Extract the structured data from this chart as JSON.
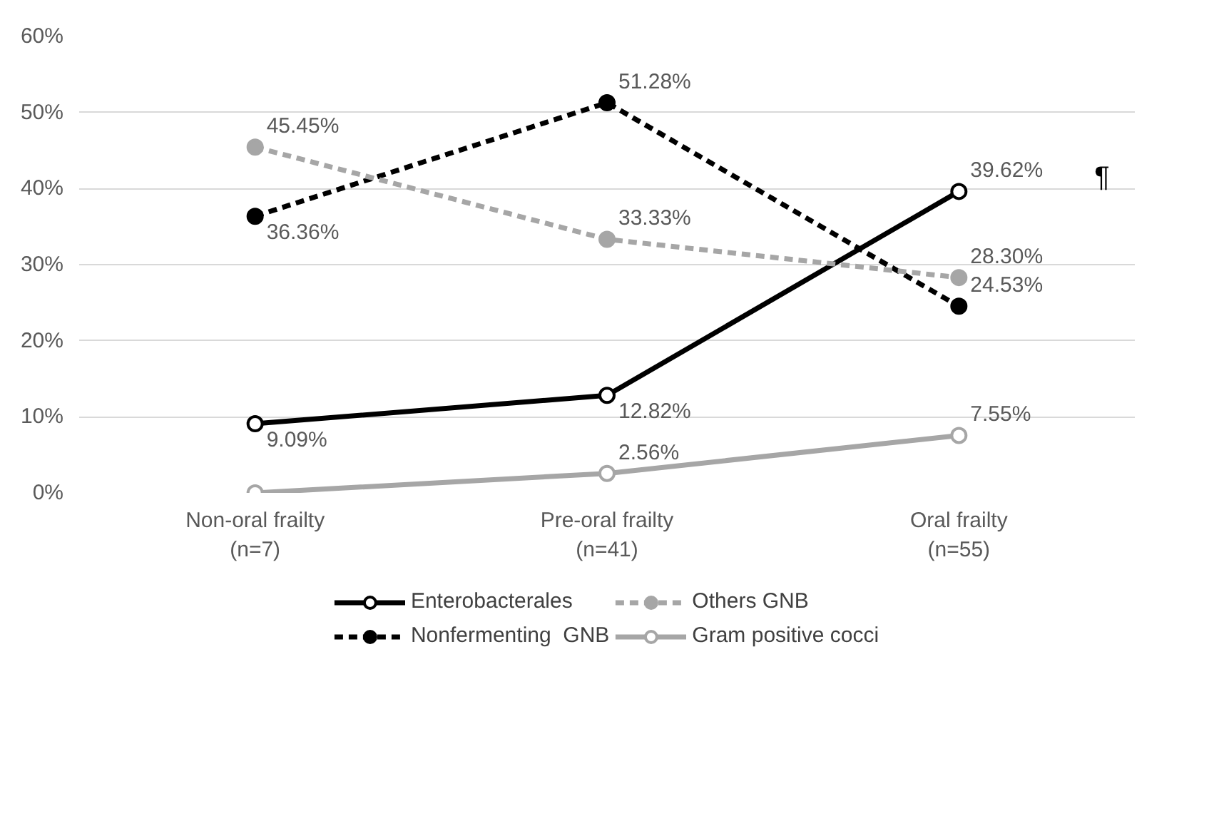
{
  "chart_data": {
    "type": "line",
    "categories": [
      "Non-oral frailty\n(n=7)",
      "Pre-oral frailty\n(n=41)",
      "Oral frailty\n(n=55)"
    ],
    "ylim": [
      0,
      60
    ],
    "yticks": [
      {
        "value": 0,
        "label": "0%"
      },
      {
        "value": 10,
        "label": "10%"
      },
      {
        "value": 20,
        "label": "20%"
      },
      {
        "value": 30,
        "label": "30%"
      },
      {
        "value": 40,
        "label": "40%"
      },
      {
        "value": 50,
        "label": "50%"
      },
      {
        "value": 60,
        "label": "60%"
      }
    ],
    "grid": "y",
    "legend": "bottom",
    "marker": "circle",
    "annotations": [
      "¶"
    ],
    "series": [
      {
        "name": "Enterobacterales",
        "color": "#000000",
        "line_style": "solid",
        "values": [
          9.09,
          12.82,
          39.62
        ],
        "value_labels": [
          "9.09%",
          "12.82%",
          "39.62%"
        ]
      },
      {
        "name": "Nonfermenting  GNB",
        "color": "#000000",
        "line_style": "dashed",
        "values": [
          36.36,
          51.28,
          24.53
        ],
        "value_labels": [
          "36.36%",
          "51.28%",
          "24.53%"
        ]
      },
      {
        "name": "Others GNB",
        "color": "#a6a6a6",
        "line_style": "dashed",
        "values": [
          45.45,
          33.33,
          28.3
        ],
        "value_labels": [
          "45.45%",
          "33.33%",
          "28.30%"
        ]
      },
      {
        "name": "Gram positive cocci",
        "color": "#a6a6a6",
        "line_style": "solid",
        "values": [
          0,
          2.56,
          7.55
        ],
        "value_labels": [
          null,
          "2.56%",
          "7.55%"
        ]
      }
    ]
  }
}
